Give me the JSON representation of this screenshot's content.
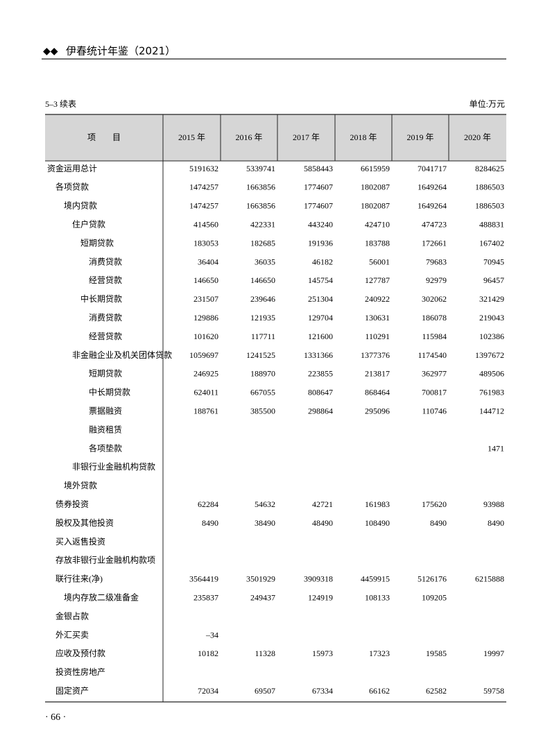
{
  "header": {
    "title": "伊春统计年鉴（2021）"
  },
  "table_label": "5–3 续表",
  "unit": "单位:万元",
  "table": {
    "columns": [
      "项　　目",
      "2015 年",
      "2016 年",
      "2017 年",
      "2018 年",
      "2019 年",
      "2020 年"
    ],
    "rows": [
      [
        "资金运用总计",
        5191632,
        5339741,
        5858443,
        6615959,
        7041717,
        8284625
      ],
      [
        "各项贷款",
        1474257,
        1663856,
        1774607,
        1802087,
        1649264,
        1886503
      ],
      [
        "境内贷款",
        1474257,
        1663856,
        1774607,
        1802087,
        1649264,
        1886503
      ],
      [
        "住户贷款",
        414560,
        422331,
        443240,
        424710,
        474723,
        488831
      ],
      [
        "短期贷款",
        183053,
        182685,
        191936,
        183788,
        172661,
        167402
      ],
      [
        "消费贷款",
        36404,
        36035,
        46182,
        56001,
        79683,
        70945
      ],
      [
        "经营贷款",
        146650,
        146650,
        145754,
        127787,
        92979,
        96457
      ],
      [
        "中长期贷款",
        231507,
        239646,
        251304,
        240922,
        302062,
        321429
      ],
      [
        "消费贷款",
        129886,
        121935,
        129704,
        130631,
        186078,
        219043
      ],
      [
        "经营贷款",
        101620,
        117711,
        121600,
        110291,
        115984,
        102386
      ],
      [
        "非金融企业及机关团体贷款",
        1059697,
        1241525,
        1331366,
        1377376,
        1174540,
        1397672
      ],
      [
        "短期贷款",
        246925,
        188970,
        223855,
        213817,
        362977,
        489506
      ],
      [
        "中长期贷款",
        624011,
        667055,
        808647,
        868464,
        700817,
        761983
      ],
      [
        "票据融资",
        188761,
        385500,
        298864,
        295096,
        110746,
        144712
      ],
      [
        "融资租赁",
        null,
        null,
        null,
        null,
        null,
        null
      ],
      [
        "各项垫款",
        null,
        null,
        null,
        null,
        null,
        1471
      ],
      [
        "非银行业金融机构贷款",
        null,
        null,
        null,
        null,
        null,
        null
      ],
      [
        "境外贷款",
        null,
        null,
        null,
        null,
        null,
        null
      ],
      [
        "债券投资",
        62284,
        54632,
        42721,
        161983,
        175620,
        93988
      ],
      [
        "股权及其他投资",
        8490,
        38490,
        48490,
        108490,
        8490,
        8490
      ],
      [
        "买入返售投资",
        null,
        null,
        null,
        null,
        null,
        null
      ],
      [
        "存放非银行业金融机构款项",
        null,
        null,
        null,
        null,
        null,
        null
      ],
      [
        "联行往来(净)",
        3564419,
        3501929,
        3909318,
        4459915,
        5126176,
        6215888
      ],
      [
        "境内存放二级准备金",
        235837,
        249437,
        124919,
        108133,
        109205,
        null
      ],
      [
        "金银占款",
        null,
        null,
        null,
        null,
        null,
        null
      ],
      [
        "外汇买卖",
        "–34",
        null,
        null,
        null,
        null,
        null
      ],
      [
        "应收及预付款",
        10182,
        11328,
        15973,
        17323,
        19585,
        19997
      ],
      [
        "投资性房地产",
        null,
        null,
        null,
        null,
        null,
        null
      ],
      [
        "固定资产",
        72034,
        69507,
        67334,
        66162,
        62582,
        59758
      ]
    ]
  },
  "footer": {
    "page": "· 66 ·"
  }
}
